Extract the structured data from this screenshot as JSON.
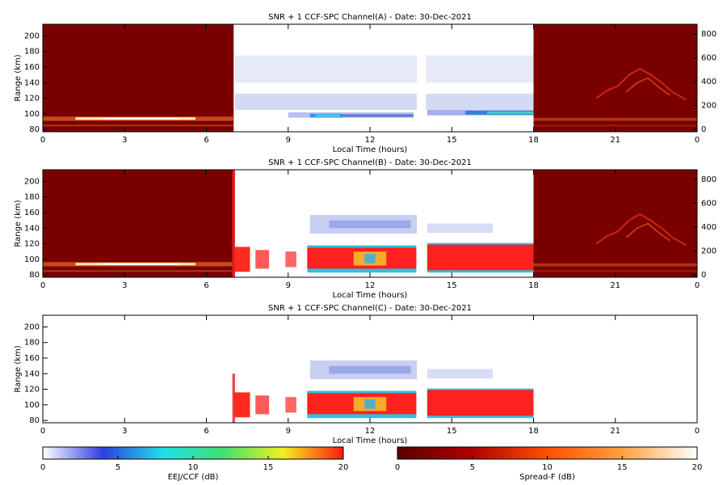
{
  "chart_data": [
    {
      "type": "heatmap",
      "title": "SNR + 1 CCF-SPC Channel(A) - Date: 30-Dec-2021",
      "xlabel": "Local Time (hours)",
      "ylabel": "Range (km)",
      "xlim": [
        0,
        24
      ],
      "xticks": [
        0,
        3,
        6,
        9,
        12,
        15,
        18,
        21,
        {
          "value": 24,
          "label": "0"
        }
      ],
      "ylim": [
        77,
        215
      ],
      "yticks": [
        80,
        100,
        120,
        140,
        160,
        180,
        200
      ],
      "y2lim": [
        -20,
        882
      ],
      "y2ticks": [
        0,
        200,
        400,
        600,
        800
      ]
    },
    {
      "type": "heatmap",
      "title": "SNR + 1 CCF-SPC Channel(B) - Date: 30-Dec-2021",
      "xlabel": "Local Time (hours)",
      "ylabel": "Range (km)",
      "xlim": [
        0,
        24
      ],
      "xticks": [
        0,
        3,
        6,
        9,
        12,
        15,
        18,
        21,
        {
          "value": 24,
          "label": "0"
        }
      ],
      "ylim": [
        77,
        215
      ],
      "yticks": [
        80,
        100,
        120,
        140,
        160,
        180,
        200
      ],
      "y2lim": [
        -20,
        882
      ],
      "y2ticks": [
        0,
        200,
        400,
        600,
        800
      ]
    },
    {
      "type": "heatmap",
      "title": "SNR + 1 CCF-SPC Channel(C) - Date: 30-Dec-2021",
      "xlabel": "Local Time (hours)",
      "ylabel": "Range (km)",
      "xlim": [
        0,
        24
      ],
      "xticks": [
        0,
        3,
        6,
        9,
        12,
        15,
        18,
        21,
        {
          "value": 24,
          "label": "0"
        }
      ],
      "ylim": [
        77,
        215
      ],
      "yticks": [
        80,
        100,
        120,
        140,
        160,
        180,
        200
      ]
    },
    {
      "type": "colorbar",
      "label": "EEJ/CCF (dB)",
      "lim": [
        0,
        20
      ],
      "ticks": [
        0,
        5,
        10,
        15,
        20
      ],
      "colors": [
        "#ffffff",
        "#2f3fe0",
        "#20e0e8",
        "#40e070",
        "#f0f020",
        "#ff1a10"
      ]
    },
    {
      "type": "colorbar",
      "label": "Spread-F (dB)",
      "lim": [
        0,
        20
      ],
      "ticks": [
        0,
        5,
        10,
        15,
        20
      ],
      "colors": [
        "#5a0000",
        "#b00000",
        "#ff5000",
        "#ffa040",
        "#ffffff"
      ]
    }
  ]
}
